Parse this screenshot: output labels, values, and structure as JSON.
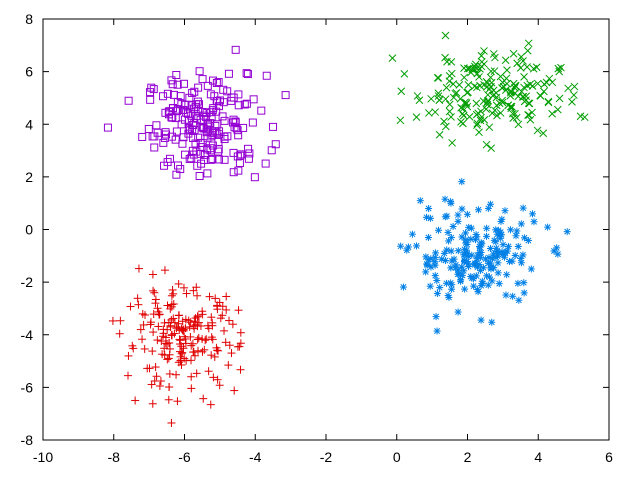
{
  "chart_data": {
    "type": "scatter",
    "title": "",
    "xlabel": "",
    "ylabel": "",
    "xlim": [
      -10,
      6
    ],
    "ylim": [
      -8,
      8
    ],
    "xticks": [
      -10,
      -8,
      -6,
      -4,
      -2,
      0,
      2,
      4,
      6
    ],
    "yticks": [
      -8,
      -6,
      -4,
      -2,
      0,
      2,
      4,
      6,
      8
    ],
    "xtick_labels": [
      "-10",
      "-8",
      "-6",
      "-4",
      "-2",
      "0",
      "2",
      "4",
      "6"
    ],
    "ytick_labels": [
      "-8",
      "-6",
      "-4",
      "-2",
      "0",
      "2",
      "4",
      "6",
      "8"
    ],
    "grid": false,
    "legend": "none",
    "series": [
      {
        "marker": "square-icon",
        "color": "#9400d3",
        "center": [
          -5.4,
          4.0
        ],
        "spread": [
          0.85,
          0.95
        ],
        "points": 200
      },
      {
        "marker": "cross-icon",
        "color": "#009e00",
        "center": [
          2.6,
          5.2
        ],
        "spread": [
          1.0,
          0.8
        ],
        "points": 200
      },
      {
        "marker": "star-icon",
        "color": "#0080e6",
        "center": [
          2.2,
          -1.0
        ],
        "spread": [
          0.9,
          0.95
        ],
        "points": 200
      },
      {
        "marker": "plus-icon",
        "color": "#e00000",
        "center": [
          -6.1,
          -4.2
        ],
        "spread": [
          0.8,
          0.95
        ],
        "points": 200
      }
    ]
  }
}
